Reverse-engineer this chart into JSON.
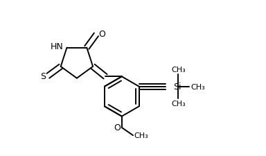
{
  "bg_color": "#ffffff",
  "line_color": "#000000",
  "lw": 1.4,
  "dbo": 0.018,
  "fig_width": 3.84,
  "fig_height": 2.26,
  "fs_main": 9,
  "fs_small": 8,
  "xlim": [
    0.0,
    1.0
  ],
  "ylim": [
    0.05,
    0.95
  ]
}
